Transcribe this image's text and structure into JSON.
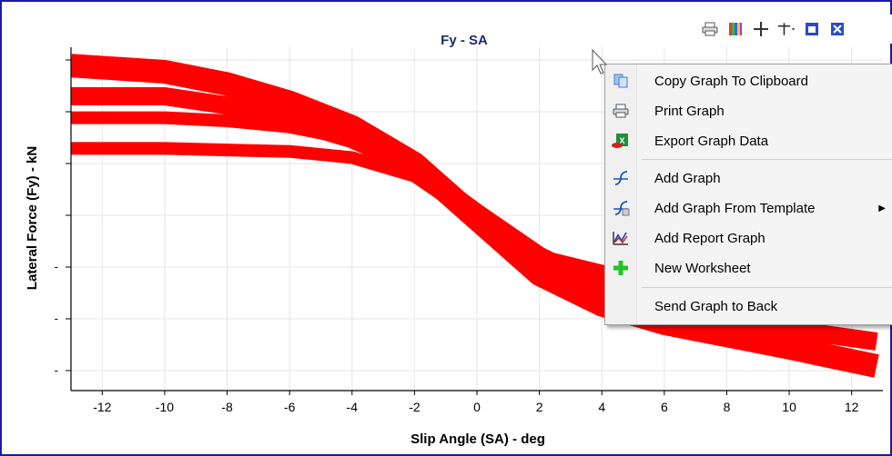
{
  "graph": {
    "title": "Fy - SA",
    "xlabel": "Slip Angle (SA) - deg",
    "ylabel": "Lateral Force (Fy) - kN"
  },
  "chart_data": {
    "type": "scatter",
    "title": "Fy - SA",
    "xlabel": "Slip Angle (SA) - deg",
    "ylabel": "Lateral Force (Fy) - kN",
    "xlim": [
      -13,
      13
    ],
    "x_ticks": [
      -12,
      -10,
      -8,
      -6,
      -4,
      -2,
      0,
      2,
      4,
      6,
      8,
      10,
      12
    ],
    "y_ticks": [
      "",
      "",
      "",
      "",
      "-",
      "-",
      "-"
    ],
    "grid": true,
    "color": "#ff0000",
    "series": [
      {
        "x": [
          -13,
          -10,
          -8,
          -6,
          -4,
          -2,
          0,
          2,
          4,
          6,
          8,
          10,
          12.8
        ],
        "y": [
          6.2,
          6.0,
          5.6,
          5.0,
          4.2,
          3.0,
          1.2,
          -0.6,
          -1.6,
          -2.2,
          -2.6,
          -3.0,
          -3.6
        ]
      },
      {
        "x": [
          -13,
          -10,
          -8,
          -6,
          -4,
          -2,
          0,
          2,
          4,
          6,
          8,
          10,
          12.8
        ],
        "y": [
          5.2,
          5.2,
          4.9,
          4.4,
          3.8,
          2.9,
          1.4,
          0.0,
          -1.0,
          -1.6,
          -2.0,
          -2.4,
          -2.8
        ]
      },
      {
        "x": [
          -13,
          -10,
          -8,
          -6,
          -4,
          -2,
          0,
          2,
          4,
          6,
          8,
          10,
          12.8
        ],
        "y": [
          4.5,
          4.5,
          4.4,
          4.2,
          3.8,
          3.0,
          1.4,
          0.0,
          -0.8,
          -1.2,
          -1.4,
          -1.6,
          -1.8
        ]
      },
      {
        "x": [
          -13,
          -10,
          -8,
          -6,
          -4,
          -2,
          0,
          2,
          4,
          6,
          8,
          10,
          12.8
        ],
        "y": [
          3.5,
          3.5,
          3.45,
          3.4,
          3.2,
          2.6,
          1.2,
          0.0,
          -0.5,
          -0.8,
          -1.0,
          -1.2,
          -1.4
        ]
      }
    ]
  },
  "toolbar": {
    "icons": [
      "printer-icon",
      "palette-icon",
      "crosshair-icon",
      "pointer-icon",
      "maximize-icon",
      "close-icon"
    ]
  },
  "context_menu": {
    "items": [
      {
        "label": "Copy Graph To Clipboard",
        "icon": "copy-icon"
      },
      {
        "label": "Print Graph",
        "icon": "printer-icon"
      },
      {
        "label": "Export Graph Data",
        "icon": "excel-icon"
      },
      {
        "label": "Add Graph",
        "icon": "add-graph-icon"
      },
      {
        "label": "Add Graph From Template",
        "icon": "template-graph-icon"
      },
      {
        "label": "Add Report Graph",
        "icon": "report-graph-icon"
      },
      {
        "label": "New Worksheet",
        "icon": "plus-icon"
      },
      {
        "label": "Send Graph to Back",
        "icon": ""
      }
    ]
  }
}
